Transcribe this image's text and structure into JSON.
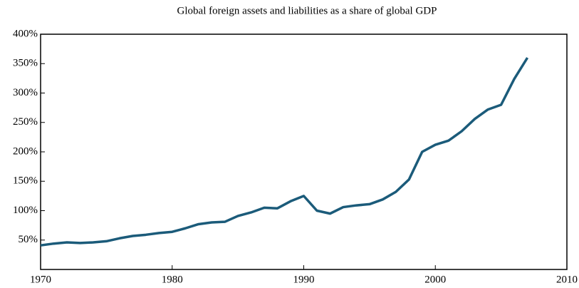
{
  "chart_data": {
    "type": "line",
    "title": "Global foreign assets and liabilities as a share of global GDP",
    "x": [
      1970,
      1971,
      1972,
      1973,
      1974,
      1975,
      1976,
      1977,
      1978,
      1979,
      1980,
      1981,
      1982,
      1983,
      1984,
      1985,
      1986,
      1987,
      1988,
      1989,
      1990,
      1991,
      1992,
      1993,
      1994,
      1995,
      1996,
      1997,
      1998,
      1999,
      2000,
      2001,
      2002,
      2003,
      2004,
      2005,
      2006,
      2007
    ],
    "series": [
      {
        "color": "#1b5b7a",
        "values": [
          41,
          44,
          46,
          45,
          46,
          48,
          53,
          57,
          59,
          62,
          64,
          70,
          77,
          80,
          81,
          91,
          97,
          105,
          104,
          116,
          125,
          100,
          95,
          106,
          109,
          111,
          119,
          132,
          153,
          200,
          212,
          219,
          235,
          256,
          272,
          280,
          324,
          360
        ]
      }
    ],
    "xlim": [
      1970,
      2010
    ],
    "xticks": [
      1970,
      1980,
      1990,
      2000,
      2010
    ],
    "ylim": [
      0,
      400
    ],
    "yticks": [
      {
        "value": 50,
        "label": "50%"
      },
      {
        "value": 100,
        "label": "100%"
      },
      {
        "value": 150,
        "label": "150%"
      },
      {
        "value": 200,
        "label": "200%"
      },
      {
        "value": 250,
        "label": "250%"
      },
      {
        "value": 300,
        "label": "300%"
      },
      {
        "value": 350,
        "label": "350%"
      },
      {
        "value": 400,
        "label": "400%"
      }
    ]
  }
}
